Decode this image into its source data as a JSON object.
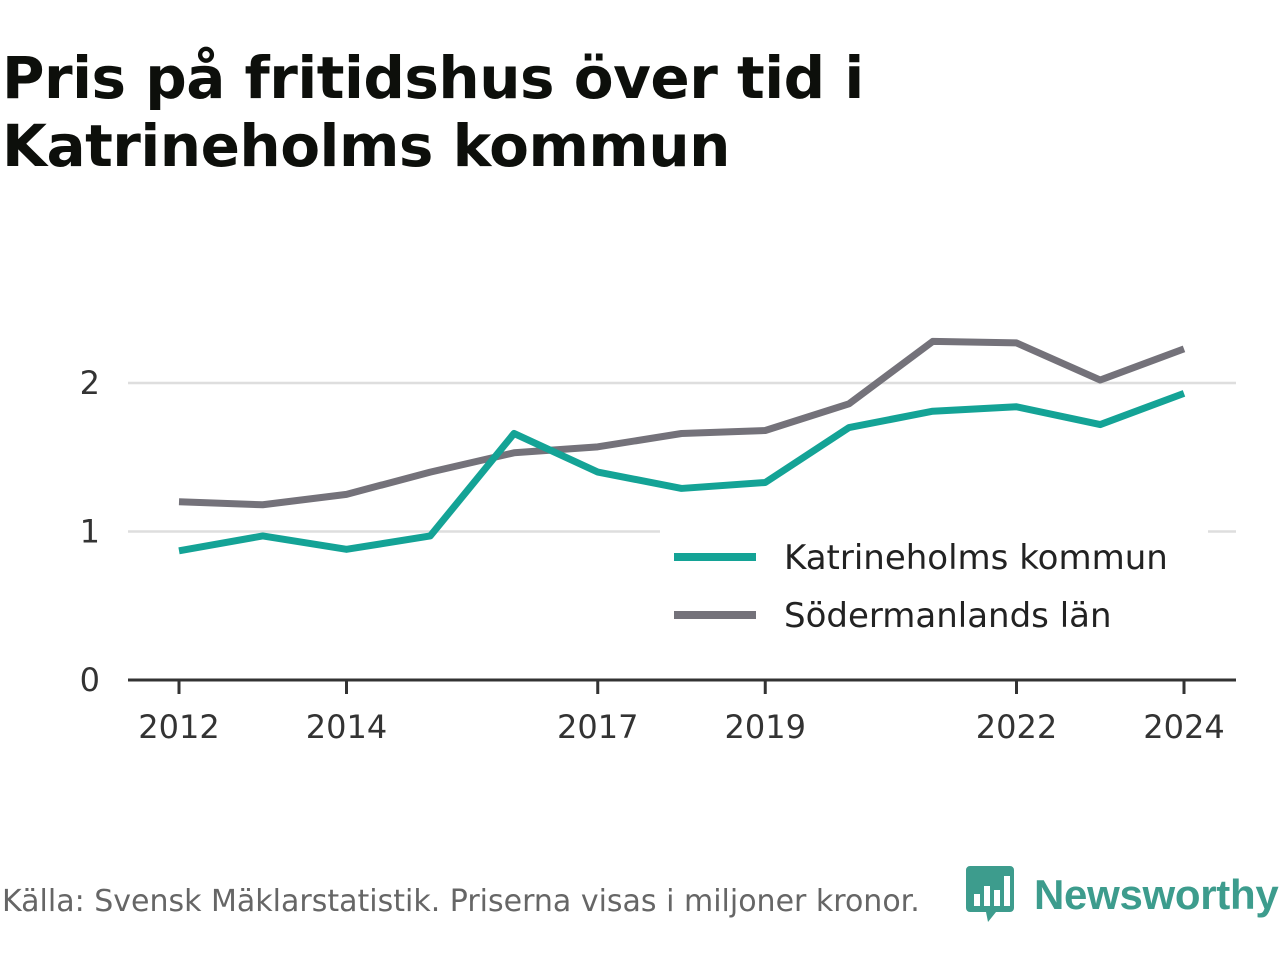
{
  "title": "Pris på fritidshus över tid i Katrineholms kommun",
  "footer": {
    "source": "Källa: Svensk Mäklarstatistik. Priserna visas i miljoner kronor."
  },
  "brand": {
    "name": "Newsworthy",
    "icon": "bar-chart-speech-bubble-icon"
  },
  "chart_data": {
    "type": "line",
    "x": [
      2012,
      2013,
      2014,
      2015,
      2016,
      2017,
      2018,
      2019,
      2020,
      2021,
      2022,
      2023,
      2024
    ],
    "x_tick_labels": [
      "2012",
      "2014",
      "2017",
      "2019",
      "2022",
      "2024"
    ],
    "y_tick_labels": [
      "0",
      "1",
      "2"
    ],
    "ylim": [
      0,
      2.3
    ],
    "grid": true,
    "legend_position": "bottom-right",
    "series": [
      {
        "name": "Katrineholms kommun",
        "color": "#14a396",
        "values": [
          0.87,
          0.97,
          0.88,
          0.97,
          1.66,
          1.4,
          1.29,
          1.33,
          1.7,
          1.81,
          1.84,
          1.72,
          1.93
        ]
      },
      {
        "name": "Södermanlands län",
        "color": "#74727a",
        "values": [
          1.2,
          1.18,
          1.25,
          1.4,
          1.53,
          1.57,
          1.66,
          1.68,
          1.86,
          2.28,
          2.27,
          2.02,
          2.23
        ]
      }
    ]
  }
}
